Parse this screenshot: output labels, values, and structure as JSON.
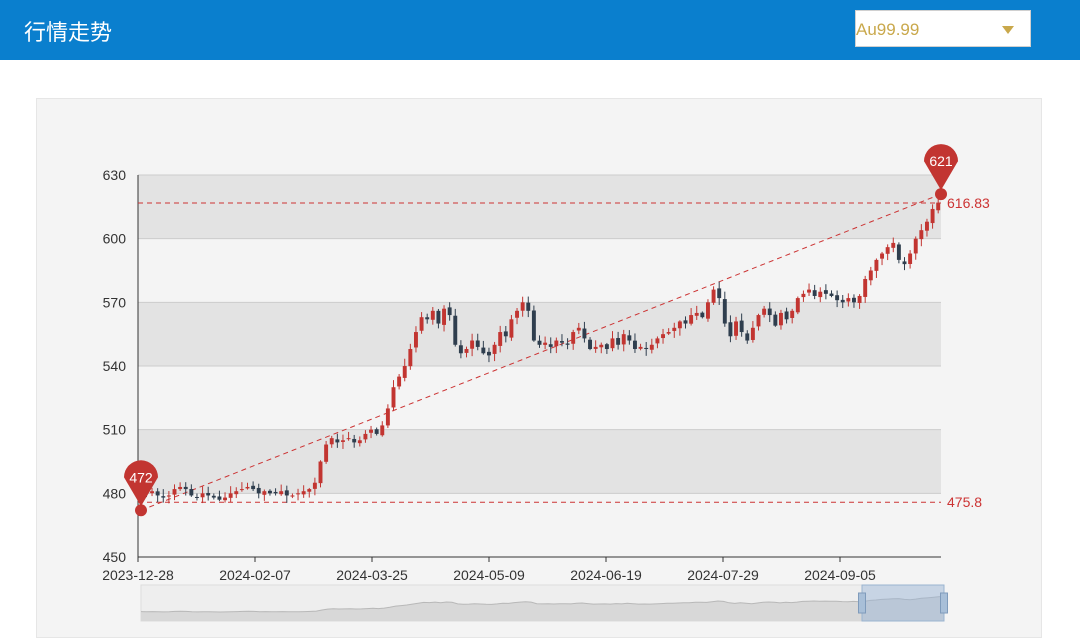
{
  "header": {
    "title": "行情走势",
    "select": {
      "value": "Au99.99",
      "arrow_icon": "caret-down-icon"
    }
  },
  "colors": {
    "header": "#0a7fce",
    "up": "#c23531",
    "down": "#2f3e4e",
    "ref": "#cc3333",
    "band": "#e3e3e3"
  },
  "chart_data": {
    "type": "candlestick",
    "ylim": [
      450,
      630
    ],
    "yticks": [
      450,
      480,
      510,
      540,
      570,
      600,
      630
    ],
    "x_tick_labels": [
      "2023-12-28",
      "2024-02-07",
      "2024-03-25",
      "2024-05-09",
      "2024-06-19",
      "2024-07-29",
      "2024-09-05"
    ],
    "annotations": {
      "min_label": "472",
      "max_label": "621",
      "upper_line_label": "616.83",
      "lower_line_label": "475.8"
    },
    "trend_line": {
      "from": 472,
      "to": 621
    },
    "ref_lines": [
      616.83,
      475.8
    ],
    "closes": [
      481,
      480,
      481,
      479,
      478,
      479,
      482,
      483,
      482,
      479,
      478,
      480,
      479,
      478,
      477,
      478,
      480,
      481,
      482,
      483,
      482,
      480,
      481,
      480,
      480,
      481,
      479,
      479,
      480,
      481,
      482,
      485,
      495,
      503,
      506,
      504,
      505,
      506,
      504,
      505,
      508,
      510,
      508,
      512,
      520,
      530,
      535,
      540,
      548,
      556,
      563,
      562,
      566,
      560,
      567,
      564,
      550,
      546,
      548,
      552,
      549,
      546,
      545,
      550,
      556,
      554,
      562,
      566,
      570,
      566,
      552,
      550,
      551,
      549,
      552,
      551,
      550,
      556,
      558,
      553,
      548,
      549,
      550,
      548,
      553,
      550,
      555,
      552,
      548,
      549,
      548,
      550,
      553,
      555,
      556,
      558,
      561,
      560,
      564,
      565,
      563,
      570,
      576,
      572,
      560,
      554,
      561,
      556,
      552,
      558,
      564,
      567,
      564,
      559,
      565,
      562,
      566,
      572,
      574,
      576,
      573,
      575,
      574,
      573,
      571,
      570,
      572,
      570,
      573,
      581,
      585,
      590,
      593,
      596,
      598,
      590,
      588,
      593,
      600,
      604,
      608,
      614,
      617
    ]
  }
}
